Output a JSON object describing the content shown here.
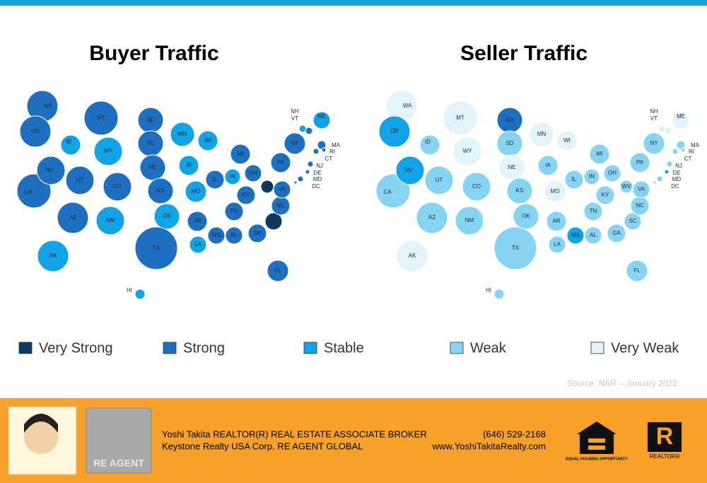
{
  "buyer": {
    "title": "Buyer Traffic",
    "states": [
      {
        "label": "WA",
        "level": "Strong"
      },
      {
        "label": "OR",
        "level": "Strong"
      },
      {
        "label": "CA",
        "level": "Strong"
      },
      {
        "label": "NV",
        "level": "Strong"
      },
      {
        "label": "ID",
        "level": "Stable"
      },
      {
        "label": "MT",
        "level": "Strong"
      },
      {
        "label": "WY",
        "level": "Stable"
      },
      {
        "label": "UT",
        "level": "Strong"
      },
      {
        "label": "AZ",
        "level": "Strong"
      },
      {
        "label": "CO",
        "level": "Strong"
      },
      {
        "label": "NM",
        "level": "Stable"
      },
      {
        "label": "ND",
        "level": "Strong"
      },
      {
        "label": "SD",
        "level": "Strong"
      },
      {
        "label": "NE",
        "level": "Strong"
      },
      {
        "label": "KS",
        "level": "Strong"
      },
      {
        "label": "OK",
        "level": "Stable"
      },
      {
        "label": "TX",
        "level": "Strong"
      },
      {
        "label": "MN",
        "level": "Stable"
      },
      {
        "label": "IA",
        "level": "Stable"
      },
      {
        "label": "MO",
        "level": "Stable"
      },
      {
        "label": "AR",
        "level": "Strong"
      },
      {
        "label": "LA",
        "level": "Stable"
      },
      {
        "label": "WI",
        "level": "Stable"
      },
      {
        "label": "IL",
        "level": "Strong"
      },
      {
        "label": "MS",
        "level": "Strong"
      },
      {
        "label": "MI",
        "level": "Strong"
      },
      {
        "label": "IN",
        "level": "Stable"
      },
      {
        "label": "KY",
        "level": "Strong"
      },
      {
        "label": "TN",
        "level": "Strong"
      },
      {
        "label": "AL",
        "level": "Strong"
      },
      {
        "label": "OH",
        "level": "Strong"
      },
      {
        "label": "GA",
        "level": "Strong"
      },
      {
        "label": "FL",
        "level": "Strong"
      },
      {
        "label": "WV",
        "level": "Very Strong"
      },
      {
        "label": "SC",
        "level": "Very Strong"
      },
      {
        "label": "NC",
        "level": "Strong"
      },
      {
        "label": "VA",
        "level": "Strong"
      },
      {
        "label": "PA",
        "level": "Strong"
      },
      {
        "label": "NY",
        "level": "Strong"
      },
      {
        "label": "ME",
        "level": "Stable"
      },
      {
        "label": "NH",
        "level": "Strong"
      },
      {
        "label": "VT",
        "level": "Stable"
      },
      {
        "label": "MA",
        "level": "Strong"
      },
      {
        "label": "RI",
        "level": "Strong"
      },
      {
        "label": "CT",
        "level": "Strong"
      },
      {
        "label": "NJ",
        "level": "Strong"
      },
      {
        "label": "DE",
        "level": "Strong"
      },
      {
        "label": "MD",
        "level": "Strong"
      },
      {
        "label": "DC",
        "level": "Strong"
      },
      {
        "label": "AK",
        "level": "Stable"
      },
      {
        "label": "HI",
        "level": "Stable"
      }
    ]
  },
  "seller": {
    "title": "Seller Traffic",
    "states": [
      {
        "label": "WA",
        "level": "Very Weak"
      },
      {
        "label": "OR",
        "level": "Stable"
      },
      {
        "label": "CA",
        "level": "Weak"
      },
      {
        "label": "NV",
        "level": "Stable"
      },
      {
        "label": "ID",
        "level": "Weak"
      },
      {
        "label": "MT",
        "level": "Very Weak"
      },
      {
        "label": "WY",
        "level": "Very Weak"
      },
      {
        "label": "UT",
        "level": "Weak"
      },
      {
        "label": "AZ",
        "level": "Weak"
      },
      {
        "label": "CO",
        "level": "Weak"
      },
      {
        "label": "NM",
        "level": "Weak"
      },
      {
        "label": "ND",
        "level": "Strong"
      },
      {
        "label": "SD",
        "level": "Weak"
      },
      {
        "label": "NE",
        "level": "Very Weak"
      },
      {
        "label": "KS",
        "level": "Weak"
      },
      {
        "label": "OK",
        "level": "Weak"
      },
      {
        "label": "TX",
        "level": "Weak"
      },
      {
        "label": "MN",
        "level": "Very Weak"
      },
      {
        "label": "IA",
        "level": "Weak"
      },
      {
        "label": "MO",
        "level": "Very Weak"
      },
      {
        "label": "AR",
        "level": "Weak"
      },
      {
        "label": "LA",
        "level": "Weak"
      },
      {
        "label": "WI",
        "level": "Very Weak"
      },
      {
        "label": "IL",
        "level": "Weak"
      },
      {
        "label": "MS",
        "level": "Stable"
      },
      {
        "label": "MI",
        "level": "Weak"
      },
      {
        "label": "IN",
        "level": "Weak"
      },
      {
        "label": "KY",
        "level": "Weak"
      },
      {
        "label": "TN",
        "level": "Weak"
      },
      {
        "label": "AL",
        "level": "Weak"
      },
      {
        "label": "OH",
        "level": "Weak"
      },
      {
        "label": "GA",
        "level": "Weak"
      },
      {
        "label": "FL",
        "level": "Weak"
      },
      {
        "label": "WV",
        "level": "Weak"
      },
      {
        "label": "SC",
        "level": "Weak"
      },
      {
        "label": "NC",
        "level": "Weak"
      },
      {
        "label": "VA",
        "level": "Weak"
      },
      {
        "label": "PA",
        "level": "Weak"
      },
      {
        "label": "NY",
        "level": "Weak"
      },
      {
        "label": "ME",
        "level": "Very Weak"
      },
      {
        "label": "NH",
        "level": "Very Weak"
      },
      {
        "label": "VT",
        "level": "Very Weak"
      },
      {
        "label": "MA",
        "level": "Weak"
      },
      {
        "label": "RI",
        "level": "Weak"
      },
      {
        "label": "CT",
        "level": "Weak"
      },
      {
        "label": "NJ",
        "level": "Weak"
      },
      {
        "label": "DE",
        "level": "Stable"
      },
      {
        "label": "MD",
        "level": "Weak"
      },
      {
        "label": "DC",
        "level": "Weak"
      },
      {
        "label": "AK",
        "level": "Very Weak"
      },
      {
        "label": "HI",
        "level": "Weak"
      }
    ]
  },
  "legend": [
    {
      "label": "Very Strong",
      "color": "#0c3a62"
    },
    {
      "label": "Strong",
      "color": "#1f6fc1"
    },
    {
      "label": "Stable",
      "color": "#12a2e6"
    },
    {
      "label": "Weak",
      "color": "#86d3f2"
    },
    {
      "label": "Very Weak",
      "color": "#e2f3fa"
    }
  ],
  "source": "Source: NAR – January 2022",
  "footer": {
    "agent": "Yoshi Takita REALTOR(R) REAL ESTATE ASSOCIATE BROKER",
    "company": "Keystone Realty USA Corp.  RE AGENT GLOBAL",
    "phone": "(646) 529-2168",
    "website": "www.YoshiTakitaRealty.com",
    "logo_text": "RE AGENT",
    "eho": "EQUAL HOUSING OPPORTUNITY",
    "realtor": "REALTOR®"
  }
}
